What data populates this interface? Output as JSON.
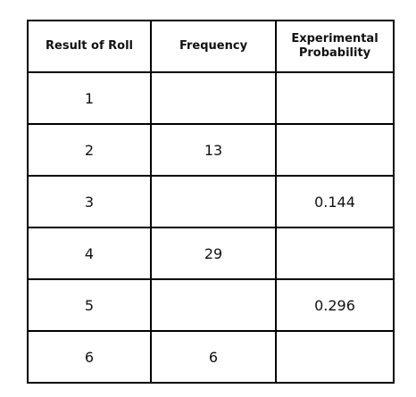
{
  "table": {
    "header": [
      "Result of Roll",
      "Frequency",
      "Experimental Probability"
    ],
    "rows": [
      [
        1,
        null,
        null
      ],
      [
        2,
        13,
        null
      ],
      [
        3,
        null,
        0.144
      ],
      [
        4,
        29,
        null
      ],
      [
        5,
        null,
        0.296
      ],
      [
        6,
        6,
        null
      ]
    ]
  }
}
